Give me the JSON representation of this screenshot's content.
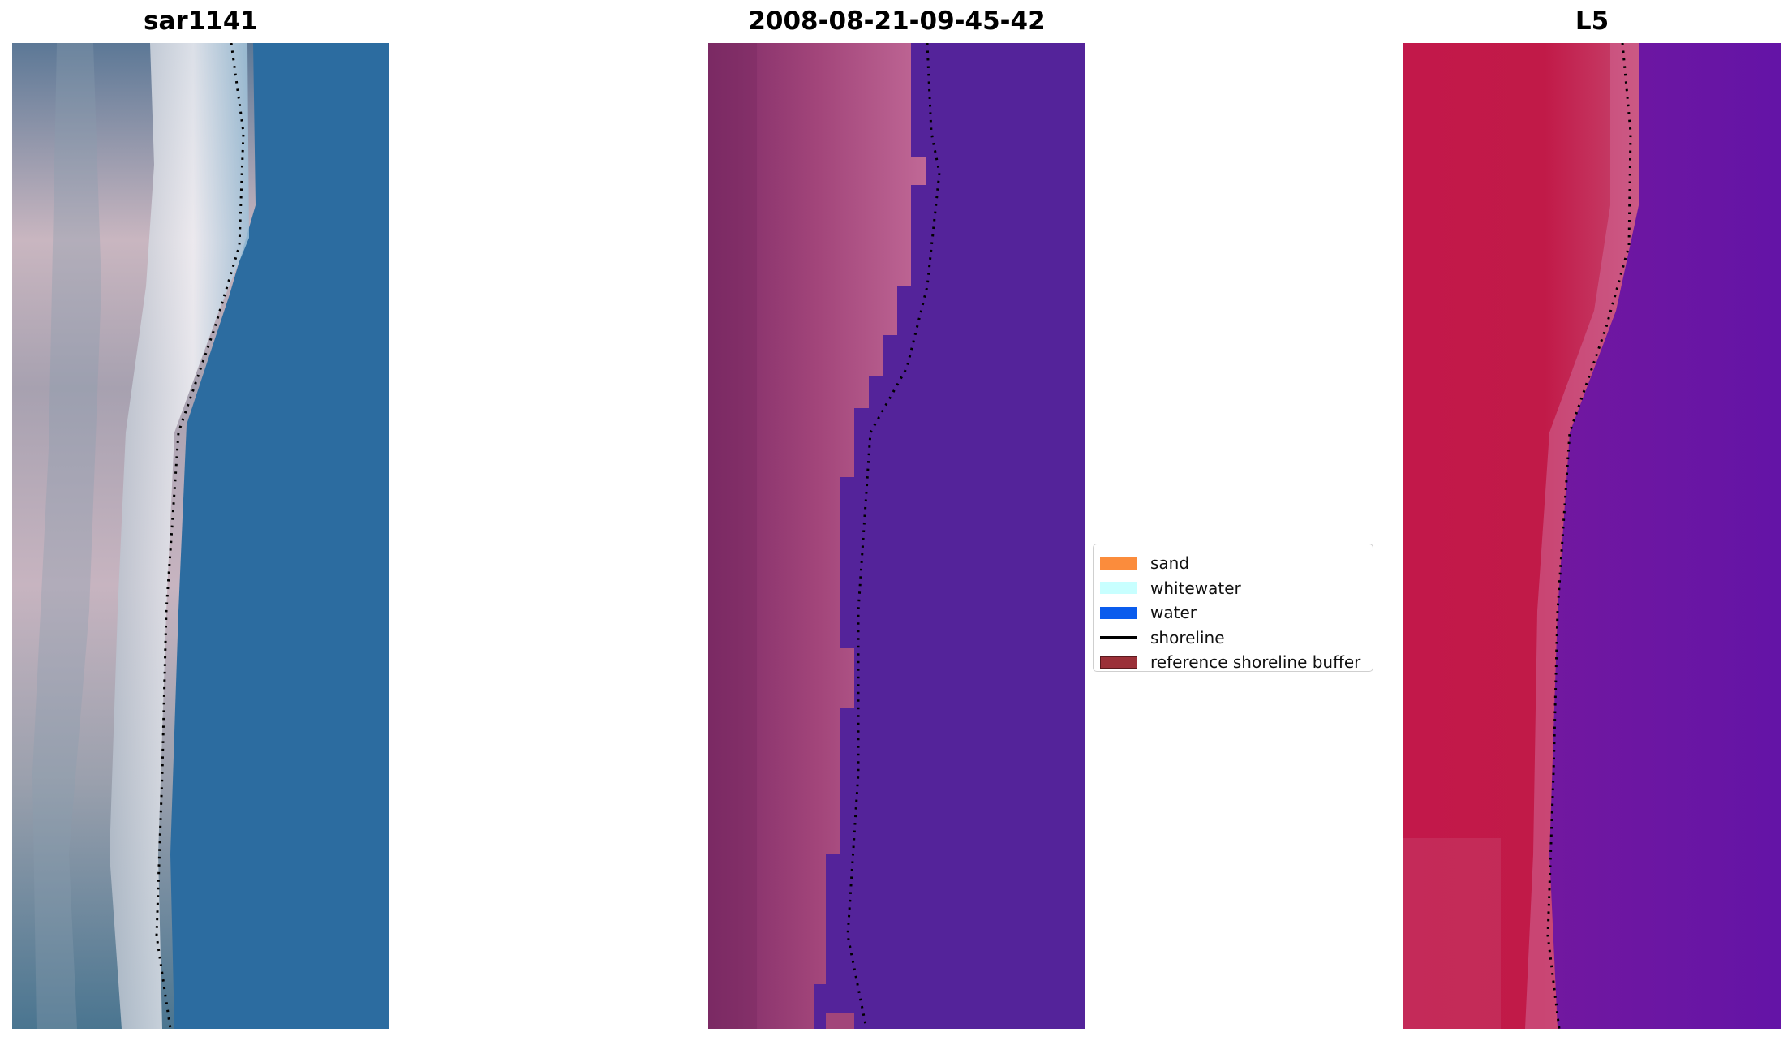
{
  "panels": [
    {
      "title": "sar1141"
    },
    {
      "title": "2008-08-21-09-45-42"
    },
    {
      "title": "L5"
    }
  ],
  "legend": {
    "items": [
      {
        "label": "sand",
        "kind": "patch",
        "color": "#fb8c3c"
      },
      {
        "label": "whitewater",
        "kind": "patch",
        "color": "#c8ffff"
      },
      {
        "label": "water",
        "kind": "patch",
        "color": "#0a5ced"
      },
      {
        "label": "shoreline",
        "kind": "line",
        "color": "#000000"
      },
      {
        "label": "reference shoreline buffer",
        "kind": "patch",
        "color": "#9b3038",
        "edge": "#5a1a1e"
      }
    ]
  },
  "colors": {
    "rgb_water": "#2c6ca0",
    "classified_water": "#54239a",
    "classified_sand": "#a24576",
    "mndwi_land": "#c41a4a",
    "mndwi_water": "#6a1aa0",
    "shoreline": "#000000"
  }
}
